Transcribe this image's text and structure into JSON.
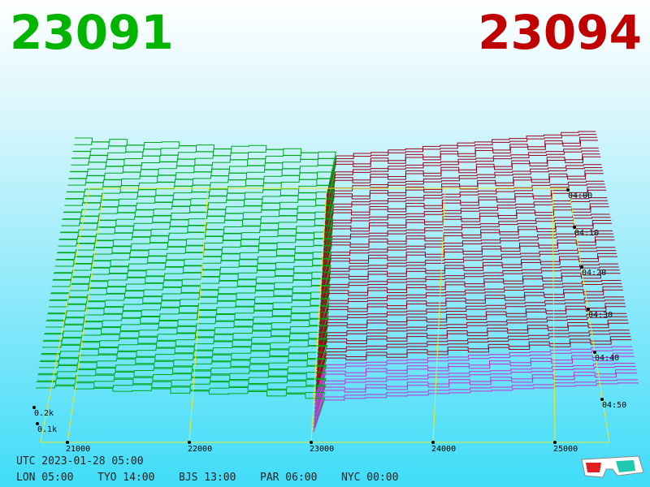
{
  "header": {
    "bid": "23091",
    "ask": "23094"
  },
  "x_axis": {
    "labels": [
      "21000",
      "22000",
      "23000",
      "24000",
      "25000"
    ]
  },
  "depth_axis": {
    "labels": [
      "0.2k",
      "0.1k"
    ]
  },
  "time_axis": {
    "labels": [
      "04:00",
      "04:10",
      "04:20",
      "04:30",
      "04:40",
      "04:50"
    ]
  },
  "footer": {
    "utc": "UTC 2023-01-28 05:00",
    "cities": [
      "LON 05:00",
      "TYO 14:00",
      "BJS 13:00",
      "PAR 06:00",
      "NYC 00:00"
    ]
  }
}
